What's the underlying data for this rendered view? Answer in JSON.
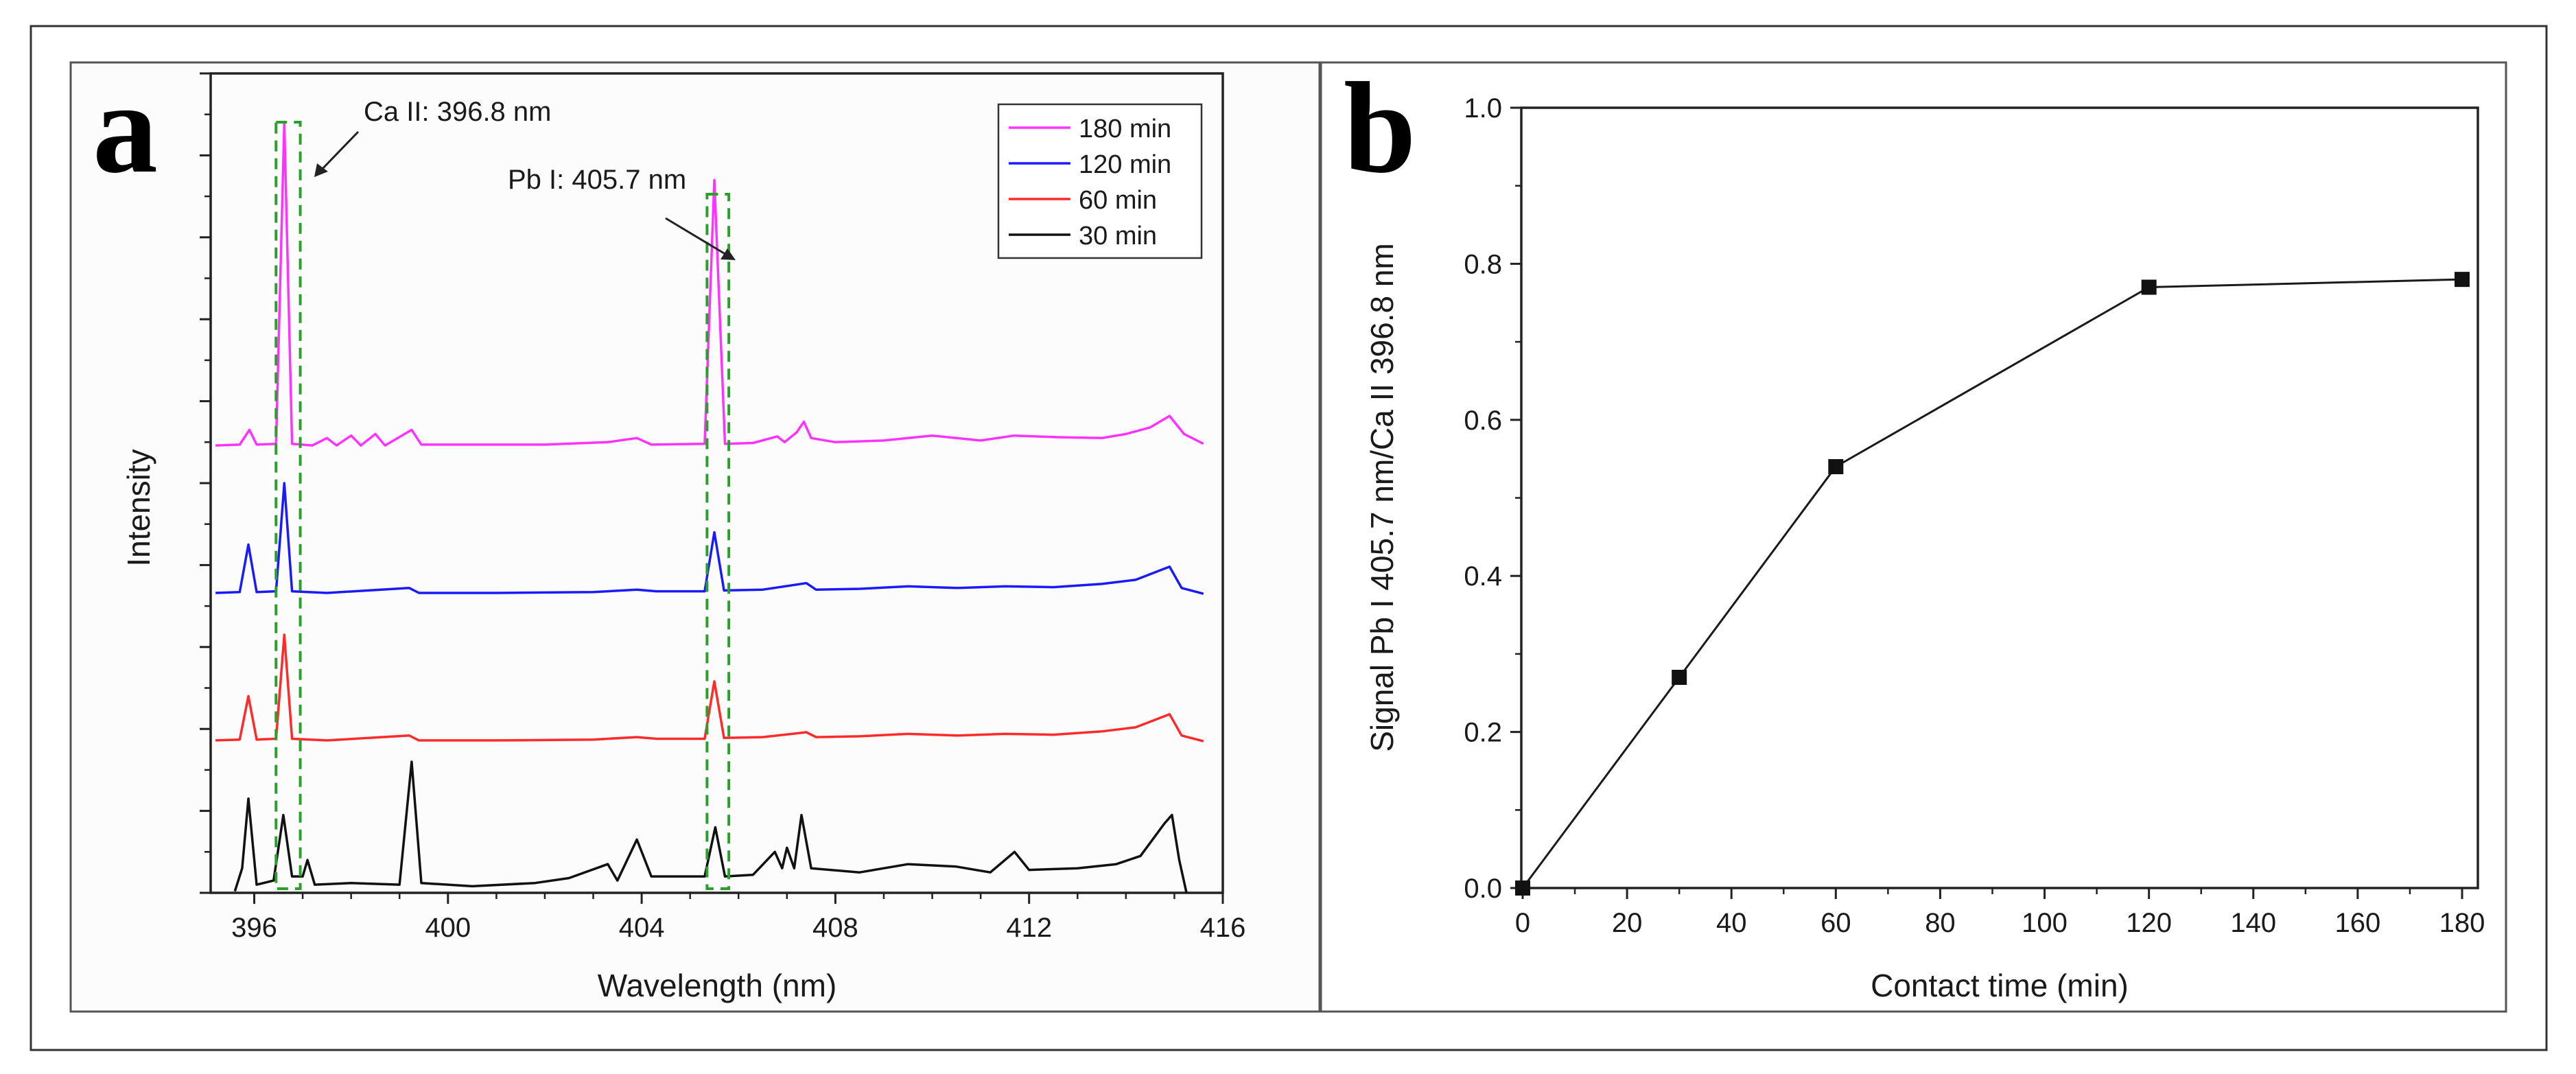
{
  "colors": {
    "series_180": "#ff33ff",
    "series_120": "#1a1aff",
    "series_60": "#ff2a2a",
    "series_30": "#111111",
    "annotation_box": "#2aa02a",
    "line_b": "#1a1a1a"
  },
  "chart_data": [
    {
      "id": "a",
      "panel_label": "a",
      "type": "line",
      "title": "",
      "xlabel": "Wavelength (nm)",
      "ylabel": "Intensity",
      "xlim": [
        395.1,
        416.0
      ],
      "ylim": [
        0,
        10
      ],
      "x_ticks": [
        396,
        400,
        404,
        408,
        412,
        416
      ],
      "x_tick_labels": [
        "396",
        "400",
        "404",
        "408",
        "412",
        "416"
      ],
      "y_tick_labels_shown": false,
      "legend_position": "top-right",
      "legend": [
        "180 min",
        "120 min",
        "60 min",
        "30 min"
      ],
      "annotations": [
        {
          "text": "Ca II: 396.8 nm",
          "wavelength": 396.8,
          "box_x": [
            396.45,
            396.95
          ]
        },
        {
          "text": "Pb I: 405.7 nm",
          "wavelength": 405.7,
          "box_x": [
            405.35,
            405.8
          ]
        }
      ],
      "series": [
        {
          "name": "180 min",
          "color_key": "series_180",
          "offset": 5.4,
          "points": [
            [
              395.2,
              0.06
            ],
            [
              395.7,
              0.07
            ],
            [
              395.9,
              0.25
            ],
            [
              396.05,
              0.07
            ],
            [
              396.45,
              0.08
            ],
            [
              396.62,
              4.0
            ],
            [
              396.78,
              0.08
            ],
            [
              397.2,
              0.06
            ],
            [
              397.5,
              0.15
            ],
            [
              397.7,
              0.06
            ],
            [
              398.0,
              0.18
            ],
            [
              398.2,
              0.06
            ],
            [
              398.5,
              0.2
            ],
            [
              398.7,
              0.06
            ],
            [
              399.25,
              0.25
            ],
            [
              399.45,
              0.07
            ],
            [
              400.5,
              0.07
            ],
            [
              402,
              0.07
            ],
            [
              403.3,
              0.1
            ],
            [
              403.9,
              0.15
            ],
            [
              404.2,
              0.07
            ],
            [
              405.3,
              0.08
            ],
            [
              405.5,
              3.3
            ],
            [
              405.72,
              0.08
            ],
            [
              406.3,
              0.09
            ],
            [
              406.8,
              0.17
            ],
            [
              406.95,
              0.1
            ],
            [
              407.2,
              0.22
            ],
            [
              407.35,
              0.35
            ],
            [
              407.5,
              0.15
            ],
            [
              408,
              0.1
            ],
            [
              409,
              0.12
            ],
            [
              410,
              0.18
            ],
            [
              411,
              0.12
            ],
            [
              411.7,
              0.18
            ],
            [
              412.6,
              0.16
            ],
            [
              413.5,
              0.15
            ],
            [
              414,
              0.2
            ],
            [
              414.5,
              0.28
            ],
            [
              414.9,
              0.42
            ],
            [
              415.2,
              0.2
            ],
            [
              415.6,
              0.08
            ]
          ]
        },
        {
          "name": "120 min",
          "color_key": "series_120",
          "offset": 3.6,
          "points": [
            [
              395.2,
              0.06
            ],
            [
              395.7,
              0.07
            ],
            [
              395.88,
              0.65
            ],
            [
              396.05,
              0.07
            ],
            [
              396.45,
              0.08
            ],
            [
              396.62,
              1.4
            ],
            [
              396.78,
              0.08
            ],
            [
              397.5,
              0.06
            ],
            [
              399.2,
              0.12
            ],
            [
              399.4,
              0.06
            ],
            [
              401,
              0.06
            ],
            [
              403,
              0.07
            ],
            [
              403.9,
              0.1
            ],
            [
              404.3,
              0.08
            ],
            [
              405.3,
              0.08
            ],
            [
              405.5,
              0.8
            ],
            [
              405.7,
              0.09
            ],
            [
              406.5,
              0.1
            ],
            [
              407.4,
              0.18
            ],
            [
              407.6,
              0.1
            ],
            [
              408.5,
              0.11
            ],
            [
              409.5,
              0.14
            ],
            [
              410.5,
              0.12
            ],
            [
              411.5,
              0.14
            ],
            [
              412.5,
              0.13
            ],
            [
              413.5,
              0.17
            ],
            [
              414.2,
              0.22
            ],
            [
              414.9,
              0.38
            ],
            [
              415.15,
              0.12
            ],
            [
              415.6,
              0.05
            ]
          ]
        },
        {
          "name": "60 min",
          "color_key": "series_60",
          "offset": 1.8,
          "points": [
            [
              395.2,
              0.06
            ],
            [
              395.7,
              0.07
            ],
            [
              395.88,
              0.6
            ],
            [
              396.05,
              0.07
            ],
            [
              396.45,
              0.08
            ],
            [
              396.62,
              1.35
            ],
            [
              396.78,
              0.08
            ],
            [
              397.5,
              0.06
            ],
            [
              399.2,
              0.12
            ],
            [
              399.4,
              0.06
            ],
            [
              401,
              0.06
            ],
            [
              403,
              0.07
            ],
            [
              403.9,
              0.1
            ],
            [
              404.3,
              0.08
            ],
            [
              405.3,
              0.08
            ],
            [
              405.5,
              0.78
            ],
            [
              405.7,
              0.09
            ],
            [
              406.5,
              0.1
            ],
            [
              407.4,
              0.16
            ],
            [
              407.6,
              0.1
            ],
            [
              408.5,
              0.11
            ],
            [
              409.5,
              0.14
            ],
            [
              410.5,
              0.12
            ],
            [
              411.5,
              0.14
            ],
            [
              412.5,
              0.13
            ],
            [
              413.5,
              0.17
            ],
            [
              414.2,
              0.22
            ],
            [
              414.9,
              0.38
            ],
            [
              415.15,
              0.12
            ],
            [
              415.6,
              0.05
            ]
          ]
        },
        {
          "name": "30 min",
          "color_key": "series_30",
          "offset": 0.0,
          "points": [
            [
              395.6,
              0.02
            ],
            [
              395.75,
              0.3
            ],
            [
              395.88,
              1.15
            ],
            [
              396.05,
              0.1
            ],
            [
              396.4,
              0.15
            ],
            [
              396.6,
              0.95
            ],
            [
              396.78,
              0.2
            ],
            [
              397.0,
              0.2
            ],
            [
              397.1,
              0.4
            ],
            [
              397.25,
              0.1
            ],
            [
              398,
              0.12
            ],
            [
              399.0,
              0.1
            ],
            [
              399.25,
              1.6
            ],
            [
              399.45,
              0.12
            ],
            [
              400.5,
              0.08
            ],
            [
              401.8,
              0.12
            ],
            [
              402.5,
              0.18
            ],
            [
              403.3,
              0.35
            ],
            [
              403.5,
              0.15
            ],
            [
              403.9,
              0.65
            ],
            [
              404.2,
              0.2
            ],
            [
              405.3,
              0.2
            ],
            [
              405.52,
              0.8
            ],
            [
              405.72,
              0.2
            ],
            [
              406.3,
              0.22
            ],
            [
              406.75,
              0.5
            ],
            [
              406.9,
              0.3
            ],
            [
              407.0,
              0.55
            ],
            [
              407.15,
              0.3
            ],
            [
              407.3,
              0.95
            ],
            [
              407.5,
              0.3
            ],
            [
              408.5,
              0.25
            ],
            [
              409.5,
              0.35
            ],
            [
              410.5,
              0.32
            ],
            [
              411.2,
              0.25
            ],
            [
              411.7,
              0.5
            ],
            [
              412,
              0.28
            ],
            [
              413,
              0.3
            ],
            [
              413.8,
              0.35
            ],
            [
              414.3,
              0.45
            ],
            [
              414.8,
              0.85
            ],
            [
              414.95,
              0.95
            ],
            [
              415.1,
              0.4
            ],
            [
              415.25,
              0.0
            ]
          ]
        }
      ]
    },
    {
      "id": "b",
      "panel_label": "b",
      "type": "line",
      "title": "",
      "xlabel": "Contact time (min)",
      "ylabel": "Signal Pb I 405.7 nm/Ca II 396.8 nm",
      "xlim": [
        0,
        180
      ],
      "ylim": [
        0.0,
        1.0
      ],
      "x_ticks": [
        0,
        20,
        40,
        60,
        80,
        100,
        120,
        140,
        160,
        180
      ],
      "x_tick_labels": [
        "0",
        "20",
        "40",
        "60",
        "80",
        "100",
        "120",
        "140",
        "160",
        "180"
      ],
      "y_ticks": [
        0.0,
        0.2,
        0.4,
        0.6,
        0.8,
        1.0
      ],
      "y_tick_labels": [
        "0.0",
        "0.2",
        "0.4",
        "0.6",
        "0.8",
        "1.0"
      ],
      "marker": "square",
      "x": [
        0,
        30,
        60,
        120,
        180
      ],
      "y": [
        0.0,
        0.27,
        0.54,
        0.77,
        0.78
      ]
    }
  ]
}
